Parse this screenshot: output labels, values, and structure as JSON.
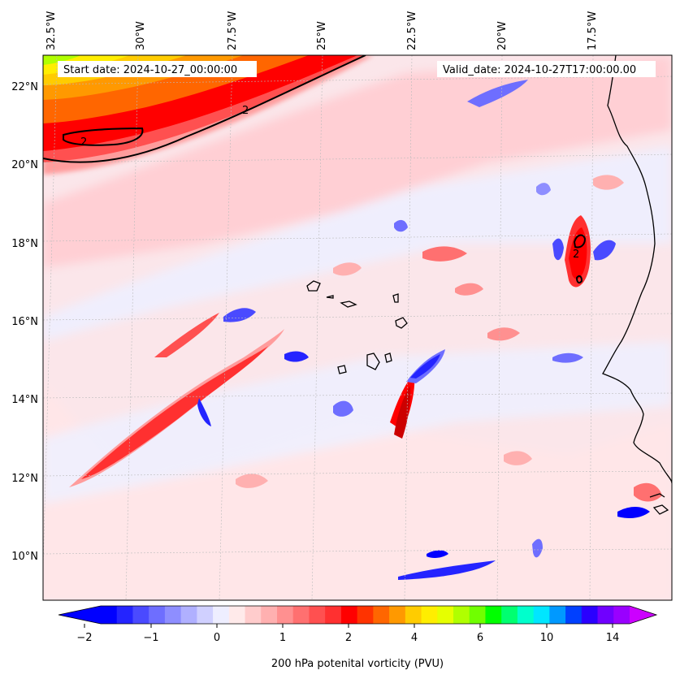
{
  "map": {
    "start_date": "Start date: 2024-10-27_00:00:00",
    "valid_date": "Valid_date: 2024-10-27T17:00:00.00",
    "lon_labels": [
      "32.5°W",
      "30°W",
      "27.5°W",
      "25°W",
      "22.5°W",
      "20°W",
      "17.5°W"
    ],
    "lat_labels": [
      "22°N",
      "20°N",
      "18°N",
      "16°N",
      "14°N",
      "12°N",
      "10°N"
    ],
    "contour_label": "2",
    "colorbar_ticks": [
      "−2",
      "−1",
      "0",
      "1",
      "2",
      "4",
      "6",
      "10",
      "14"
    ],
    "colorbar_title": "200 hPa potenital vorticity (PVU)",
    "colors": {
      "strong_positive": "#ff0000",
      "positive": "#ff9c9c",
      "weak_positive": "#ffdede",
      "weak_negative": "#eeeeff",
      "negative": "#8a8aff",
      "strong_negative": "#0000ff",
      "jet_yellow": "#ffff00",
      "jet_orange": "#ff9900",
      "coastline": "#000000"
    },
    "colorbar_colors": [
      "#0000ff",
      "#2424ff",
      "#4a4aff",
      "#6e6eff",
      "#8e8eff",
      "#b0b0ff",
      "#d0d0ff",
      "#eeeeff",
      "#ffeaea",
      "#ffcccc",
      "#ffb0b0",
      "#ff9090",
      "#ff7070",
      "#ff5050",
      "#ff3030",
      "#ff0000",
      "#ff3300",
      "#ff6600",
      "#ff9900",
      "#ffcc00",
      "#ffee00",
      "#e6ff00",
      "#b0ff00",
      "#70ff00",
      "#00ff00",
      "#00ff70",
      "#00ffcc",
      "#00e6ff",
      "#0099ff",
      "#0040ff",
      "#2a00ff",
      "#7000ff",
      "#9900ff"
    ]
  }
}
